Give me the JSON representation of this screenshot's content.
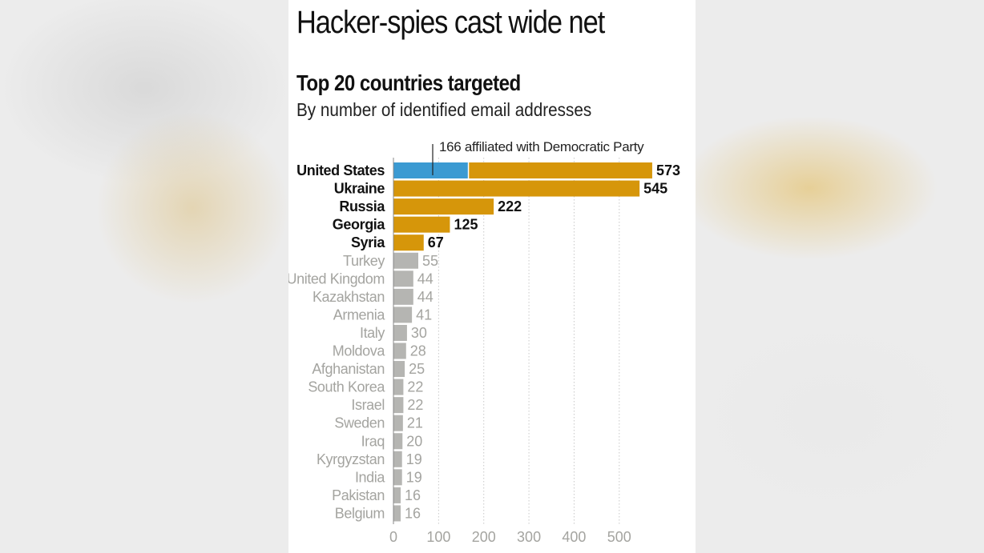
{
  "header": {
    "title": "Hacker-spies cast wide net",
    "subtitle": "Top 20 countries targeted",
    "caption": "By number of identified email addresses"
  },
  "colors": {
    "highlight": "#d6960a",
    "democratic": "#3b9ad2",
    "muted_bar": "#b5b5b2",
    "muted_text": "#a4a4a0",
    "strong_text": "#111111",
    "grid": "#c8c8c8"
  },
  "chart_data": {
    "type": "bar",
    "orientation": "horizontal",
    "title": "Top 20 countries targeted",
    "subtitle": "By number of identified email addresses",
    "categories": [
      "United States",
      "Ukraine",
      "Russia",
      "Georgia",
      "Syria",
      "Turkey",
      "United Kingdom",
      "Kazakhstan",
      "Armenia",
      "Italy",
      "Moldova",
      "Afghanistan",
      "South Korea",
      "Israel",
      "Sweden",
      "Iraq",
      "Kyrgyzstan",
      "India",
      "Pakistan",
      "Belgium"
    ],
    "values": [
      573,
      545,
      222,
      125,
      67,
      55,
      44,
      44,
      41,
      30,
      28,
      25,
      22,
      22,
      21,
      20,
      19,
      19,
      16,
      16
    ],
    "highlighted_count": 5,
    "segment": {
      "category": "United States",
      "value": 166,
      "label": "166 affiliated with Democratic Party"
    },
    "xticks": [
      0,
      100,
      200,
      300,
      400,
      500
    ],
    "xlim": [
      0,
      600
    ],
    "grid": true,
    "legend": "none"
  }
}
